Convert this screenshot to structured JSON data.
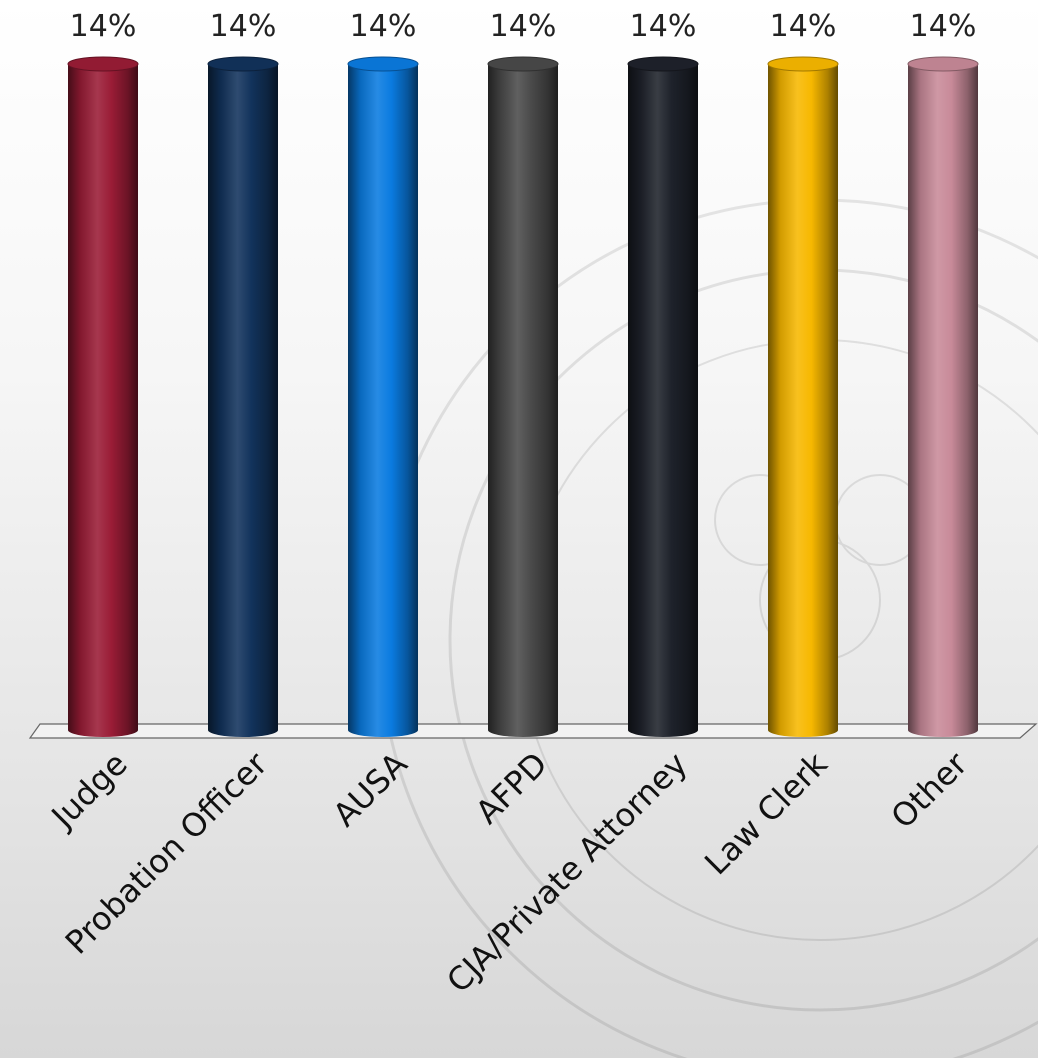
{
  "chart_data": {
    "type": "bar",
    "title": "",
    "xlabel": "",
    "ylabel": "",
    "categories": [
      "Judge",
      "Probation Officer",
      "AUSA",
      "AFPD",
      "CJA/Private Attorney",
      "Law Clerk",
      "Other"
    ],
    "values": [
      14,
      14,
      14,
      14,
      14,
      14,
      14
    ],
    "value_labels": [
      "14%",
      "14%",
      "14%",
      "14%",
      "14%",
      "14%",
      "14%"
    ],
    "unit": "%",
    "ylim": [
      0,
      14
    ],
    "bar_shape": "cylinder",
    "grid": false,
    "legend": "none",
    "colors": [
      "#9a1c36",
      "#12335c",
      "#0a7be0",
      "#4a4a4a",
      "#1e222b",
      "#f7b800",
      "#c88a99"
    ]
  }
}
